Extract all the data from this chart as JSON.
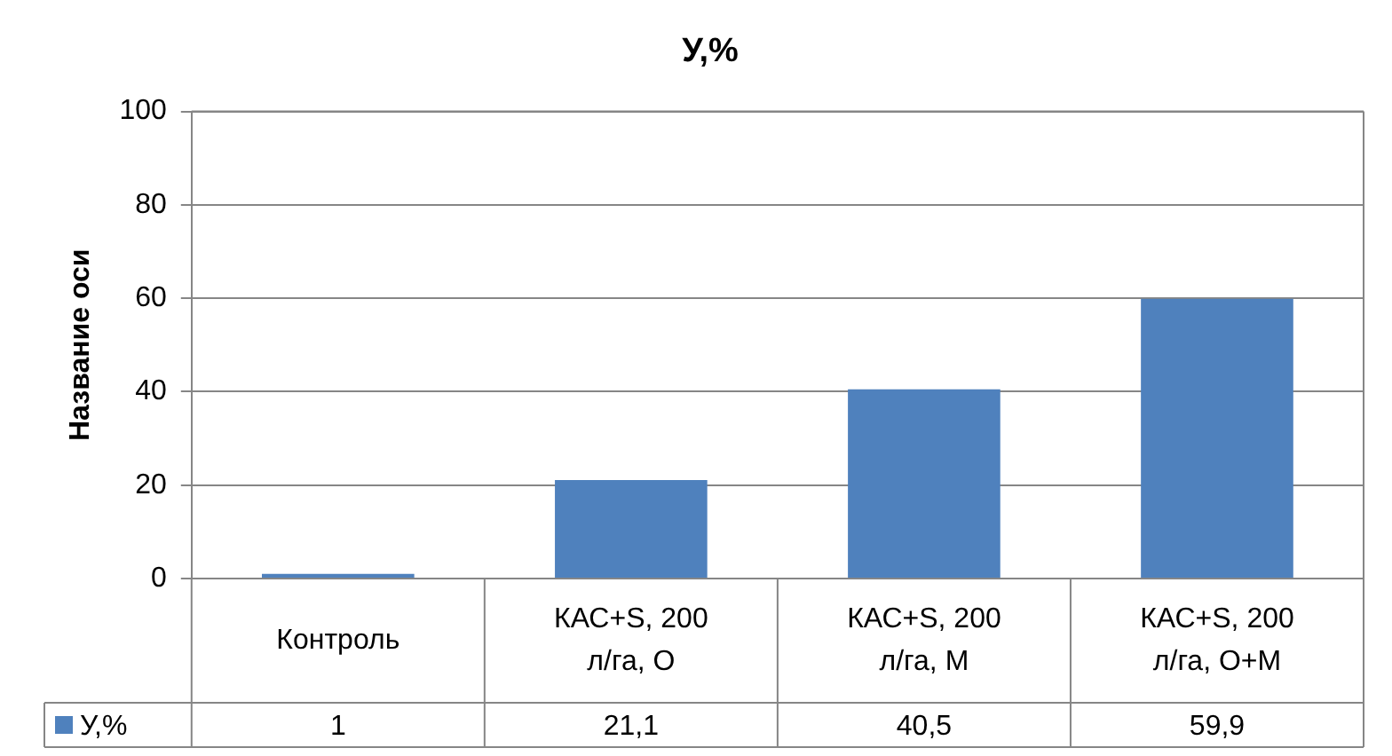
{
  "chart_data": {
    "type": "bar",
    "title": "У,%",
    "ylabel": "Название оси",
    "categories": [
      "Контроль",
      "КАС+S, 200 л/га, О",
      "КАС+S, 200 л/га, М",
      "КАС+S, 200 л/га, О+М"
    ],
    "series": [
      {
        "name": "У,%",
        "color": "#4f81bd",
        "values": [
          1,
          21.1,
          40.5,
          59.9
        ]
      }
    ],
    "ylim": [
      0,
      100
    ],
    "yticks": [
      0,
      20,
      40,
      60,
      80,
      100
    ],
    "grid": "y",
    "legend": "bottom",
    "value_labels": [
      "1",
      "21,1",
      "40,5",
      "59,9"
    ]
  }
}
